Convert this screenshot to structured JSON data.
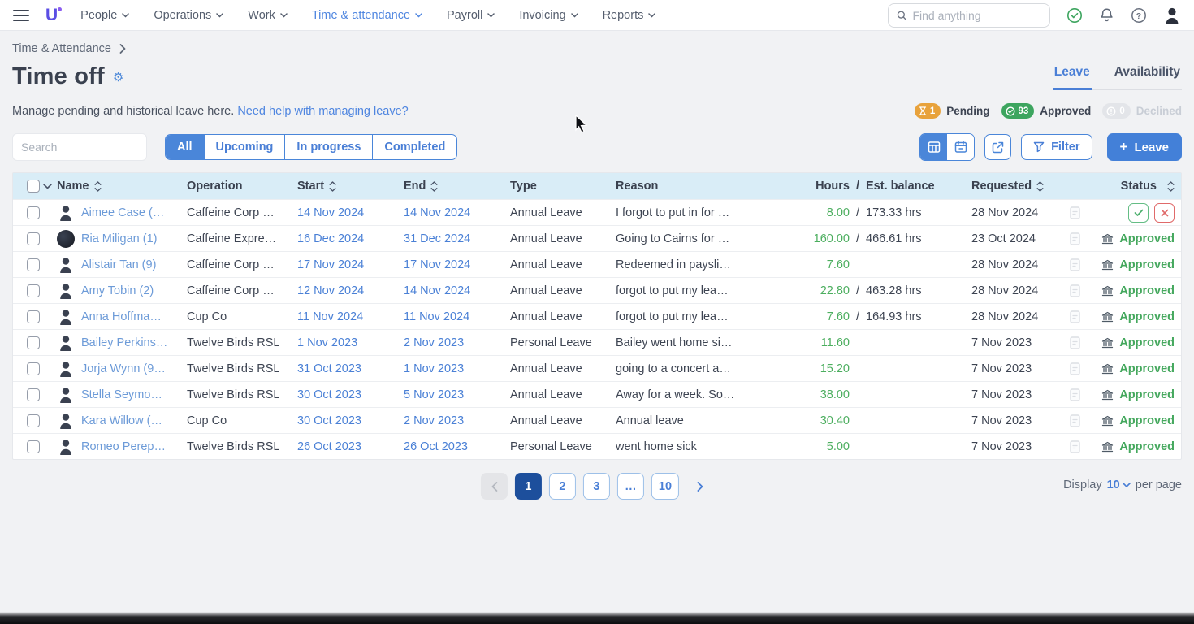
{
  "nav": {
    "items": [
      {
        "label": "People",
        "active": false
      },
      {
        "label": "Operations",
        "active": false
      },
      {
        "label": "Work",
        "active": false
      },
      {
        "label": "Time & attendance",
        "active": true
      },
      {
        "label": "Payroll",
        "active": false
      },
      {
        "label": "Invoicing",
        "active": false
      },
      {
        "label": "Reports",
        "active": false
      }
    ],
    "logo_letter": "U",
    "search_placeholder": "Find anything"
  },
  "breadcrumb": {
    "label": "Time & Attendance"
  },
  "page": {
    "title": "Time off",
    "description": "Manage pending and historical leave here.",
    "help_link": "Need help with managing leave?"
  },
  "tabs": [
    {
      "label": "Leave",
      "active": true
    },
    {
      "label": "Availability",
      "active": false
    }
  ],
  "summary_badges": [
    {
      "label": "Pending",
      "count": "1",
      "color": "#e8a23b",
      "icon": "hourglass",
      "muted": false
    },
    {
      "label": "Approved",
      "count": "93",
      "color": "#3da55f",
      "icon": "check",
      "muted": false
    },
    {
      "label": "Declined",
      "count": "0",
      "color": "#e3e5e9",
      "icon": "exclaim",
      "muted": true
    }
  ],
  "filters": {
    "search_placeholder": "Search",
    "chips": [
      {
        "label": "All",
        "active": true
      },
      {
        "label": "Upcoming",
        "active": false
      },
      {
        "label": "In progress",
        "active": false
      },
      {
        "label": "Completed",
        "active": false
      }
    ]
  },
  "toolbar": {
    "filter_label": "Filter",
    "leave_label": "Leave"
  },
  "table": {
    "columns": {
      "name": "Name",
      "operation": "Operation",
      "start": "Start",
      "end": "End",
      "type": "Type",
      "reason": "Reason",
      "hours": "Hours",
      "slash": "/",
      "balance": "Est. balance",
      "requested": "Requested",
      "status": "Status"
    },
    "approved_label": "Approved",
    "rows": [
      {
        "name": "Aimee Case (…",
        "avatar": "silhouette",
        "operation": "Caffeine Corp …",
        "start": "14 Nov 2024",
        "end": "14 Nov 2024",
        "type": "Annual Leave",
        "reason": "I forgot to put in for …",
        "hours": "8.00",
        "slash": "/",
        "balance": "173.33 hrs",
        "requested": "28 Nov 2024",
        "status": "pending"
      },
      {
        "name": "Ria Miligan (1)",
        "avatar": "photo",
        "operation": "Caffeine Expre…",
        "start": "16 Dec 2024",
        "end": "31 Dec 2024",
        "type": "Annual Leave",
        "reason": "Going to Cairns for …",
        "hours": "160.00",
        "slash": "/",
        "balance": "466.61 hrs",
        "requested": "23 Oct 2024",
        "status": "approved"
      },
      {
        "name": "Alistair Tan (9)",
        "avatar": "silhouette",
        "operation": "Caffeine Corp …",
        "start": "17 Nov 2024",
        "end": "17 Nov 2024",
        "type": "Annual Leave",
        "reason": "Redeemed in paysli…",
        "hours": "7.60",
        "slash": "",
        "balance": "",
        "requested": "28 Nov 2024",
        "status": "approved"
      },
      {
        "name": "Amy Tobin (2)",
        "avatar": "silhouette",
        "operation": "Caffeine Corp …",
        "start": "12 Nov 2024",
        "end": "14 Nov 2024",
        "type": "Annual Leave",
        "reason": "forgot to put my lea…",
        "hours": "22.80",
        "slash": "/",
        "balance": "463.28 hrs",
        "requested": "28 Nov 2024",
        "status": "approved"
      },
      {
        "name": "Anna Hoffma…",
        "avatar": "silhouette",
        "operation": "Cup Co",
        "start": "11 Nov 2024",
        "end": "11 Nov 2024",
        "type": "Annual Leave",
        "reason": "forgot to put my lea…",
        "hours": "7.60",
        "slash": "/",
        "balance": "164.93 hrs",
        "requested": "28 Nov 2024",
        "status": "approved"
      },
      {
        "name": "Bailey Perkins…",
        "avatar": "silhouette",
        "operation": "Twelve Birds RSL",
        "start": "1 Nov 2023",
        "end": "2 Nov 2023",
        "type": "Personal Leave",
        "reason": "Bailey went home si…",
        "hours": "11.60",
        "slash": "",
        "balance": "",
        "requested": "7 Nov 2023",
        "status": "approved"
      },
      {
        "name": "Jorja Wynn (9…",
        "avatar": "silhouette",
        "operation": "Twelve Birds RSL",
        "start": "31 Oct 2023",
        "end": "1 Nov 2023",
        "type": "Annual Leave",
        "reason": "going to a concert a…",
        "hours": "15.20",
        "slash": "",
        "balance": "",
        "requested": "7 Nov 2023",
        "status": "approved"
      },
      {
        "name": "Stella Seymo…",
        "avatar": "silhouette",
        "operation": "Twelve Birds RSL",
        "start": "30 Oct 2023",
        "end": "5 Nov 2023",
        "type": "Annual Leave",
        "reason": "Away for a week. So…",
        "hours": "38.00",
        "slash": "",
        "balance": "",
        "requested": "7 Nov 2023",
        "status": "approved"
      },
      {
        "name": "Kara Willow (…",
        "avatar": "silhouette",
        "operation": "Cup Co",
        "start": "30 Oct 2023",
        "end": "2 Nov 2023",
        "type": "Annual Leave",
        "reason": "Annual leave",
        "hours": "30.40",
        "slash": "",
        "balance": "",
        "requested": "7 Nov 2023",
        "status": "approved"
      },
      {
        "name": "Romeo Perep…",
        "avatar": "silhouette",
        "operation": "Twelve Birds RSL",
        "start": "26 Oct 2023",
        "end": "26 Oct 2023",
        "type": "Personal Leave",
        "reason": "went home sick",
        "hours": "5.00",
        "slash": "",
        "balance": "",
        "requested": "7 Nov 2023",
        "status": "approved"
      }
    ]
  },
  "pagination": {
    "pages": [
      "1",
      "2",
      "3",
      "…",
      "10"
    ],
    "active_page": "1",
    "display_label": "Display",
    "per_page_value": "10",
    "per_page_suffix": "per page"
  }
}
